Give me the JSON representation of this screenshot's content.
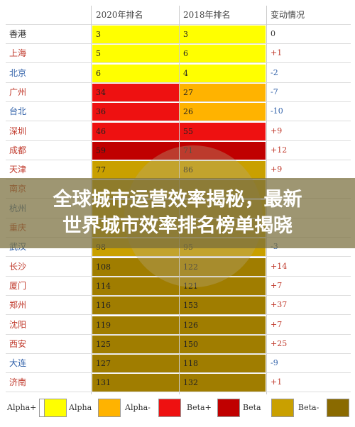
{
  "headers": {
    "city": "",
    "rank2020": "2020年排名",
    "rank2018": "2018年排名",
    "change": "变动情况"
  },
  "rows": [
    {
      "city": "香港",
      "r2020": "3",
      "r2018": "3",
      "change": "0",
      "c2020": "#ffff00",
      "c2018": "#ffff00",
      "cityColor": "#222222",
      "changeColor": "#333333"
    },
    {
      "city": "上海",
      "r2020": "5",
      "r2018": "6",
      "change": "+1",
      "c2020": "#ffff00",
      "c2018": "#ffff00",
      "cityColor": "#c0392b",
      "changeColor": "#c0392b"
    },
    {
      "city": "北京",
      "r2020": "6",
      "r2018": "4",
      "change": "-2",
      "c2020": "#ffff00",
      "c2018": "#ffff00",
      "cityColor": "#2e5fa8",
      "changeColor": "#2e5fa8"
    },
    {
      "city": "广州",
      "r2020": "34",
      "r2018": "27",
      "change": "-7",
      "c2020": "#ee1111",
      "c2018": "#ffb300",
      "cityColor": "#c0392b",
      "changeColor": "#2e5fa8"
    },
    {
      "city": "台北",
      "r2020": "36",
      "r2018": "26",
      "change": "-10",
      "c2020": "#ee1111",
      "c2018": "#ffb300",
      "cityColor": "#2e5fa8",
      "changeColor": "#2e5fa8"
    },
    {
      "city": "深圳",
      "r2020": "46",
      "r2018": "55",
      "change": "+9",
      "c2020": "#ee1111",
      "c2018": "#ee1111",
      "cityColor": "#c0392b",
      "changeColor": "#c0392b"
    },
    {
      "city": "成都",
      "r2020": "59",
      "r2018": "71",
      "change": "+12",
      "c2020": "#c00000",
      "c2018": "#c00000",
      "cityColor": "#c0392b",
      "changeColor": "#c0392b"
    },
    {
      "city": "天津",
      "r2020": "77",
      "r2018": "86",
      "change": "+9",
      "c2020": "#c9a000",
      "c2018": "#c9a000",
      "cityColor": "#c0392b",
      "changeColor": "#c0392b"
    },
    {
      "city": "南京",
      "r2020": "",
      "r2018": "",
      "change": "",
      "c2020": "#c9a000",
      "c2018": "#c9a000",
      "cityColor": "#c0392b",
      "changeColor": "#c0392b"
    },
    {
      "city": "杭州",
      "r2020": "",
      "r2018": "",
      "change": "",
      "c2020": "#c9a000",
      "c2018": "#c9a000",
      "cityColor": "#2e5fa8",
      "changeColor": "#c0392b"
    },
    {
      "city": "重庆",
      "r2020": "",
      "r2018": "",
      "change": "",
      "c2020": "#c9a000",
      "c2018": "#c9a000",
      "cityColor": "#c0392b",
      "changeColor": "#c0392b"
    },
    {
      "city": "武汉",
      "r2020": "98",
      "r2018": "95",
      "change": "-3",
      "c2020": "#c9a000",
      "c2018": "#c9a000",
      "cityColor": "#2e5fa8",
      "changeColor": "#2e5fa8"
    },
    {
      "city": "长沙",
      "r2020": "108",
      "r2018": "122",
      "change": "+14",
      "c2020": "#a07d00",
      "c2018": "#a07d00",
      "cityColor": "#c0392b",
      "changeColor": "#c0392b"
    },
    {
      "city": "厦门",
      "r2020": "114",
      "r2018": "121",
      "change": "+7",
      "c2020": "#a07d00",
      "c2018": "#a07d00",
      "cityColor": "#c0392b",
      "changeColor": "#c0392b"
    },
    {
      "city": "郑州",
      "r2020": "116",
      "r2018": "153",
      "change": "+37",
      "c2020": "#a07d00",
      "c2018": "#a07d00",
      "cityColor": "#c0392b",
      "changeColor": "#c0392b"
    },
    {
      "city": "沈阳",
      "r2020": "119",
      "r2018": "126",
      "change": "+7",
      "c2020": "#a07d00",
      "c2018": "#a07d00",
      "cityColor": "#c0392b",
      "changeColor": "#c0392b"
    },
    {
      "city": "西安",
      "r2020": "125",
      "r2018": "150",
      "change": "+25",
      "c2020": "#a07d00",
      "c2018": "#a07d00",
      "cityColor": "#c0392b",
      "changeColor": "#c0392b"
    },
    {
      "city": "大连",
      "r2020": "127",
      "r2018": "118",
      "change": "-9",
      "c2020": "#a07d00",
      "c2018": "#a07d00",
      "cityColor": "#2e5fa8",
      "changeColor": "#2e5fa8"
    },
    {
      "city": "济南",
      "r2020": "131",
      "r2018": "132",
      "change": "+1",
      "c2020": "#a07d00",
      "c2018": "#a07d00",
      "cityColor": "#c0392b",
      "changeColor": "#c0392b"
    }
  ],
  "legend": [
    {
      "label": "Alpha+",
      "color": "#ffffff"
    },
    {
      "label": "Alpha",
      "color": "#ffff00"
    },
    {
      "label": "Alpha-",
      "color": "#ffb300"
    },
    {
      "label": "Beta+",
      "color": "#ee1111"
    },
    {
      "label": "Beta",
      "color": "#c00000"
    },
    {
      "label": "Beta-",
      "color": "#c9a000"
    },
    {
      "label": "",
      "color": "#8a6a00"
    }
  ],
  "banner": {
    "line1": "全球城市运营效率揭秘，最新",
    "line2": "世界城市效率排名榜单揭晓"
  }
}
